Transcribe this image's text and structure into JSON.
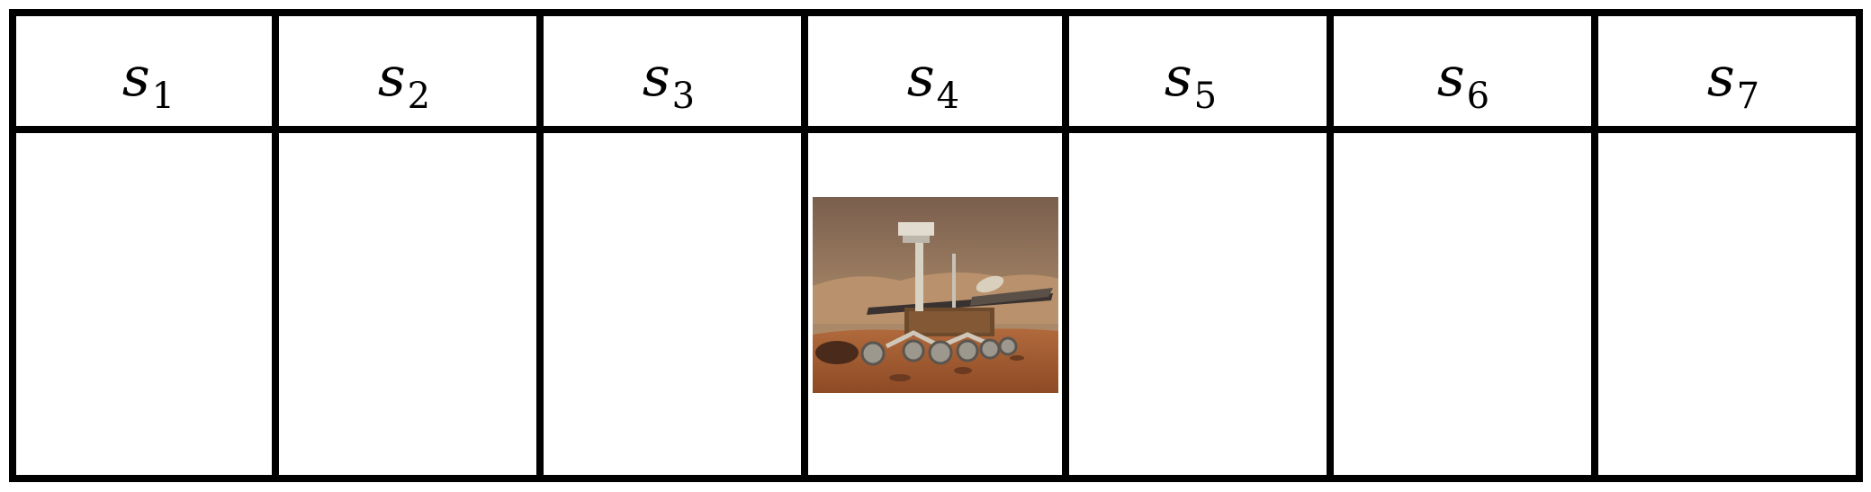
{
  "states": [
    {
      "symbol": "s",
      "index": "1"
    },
    {
      "symbol": "s",
      "index": "2"
    },
    {
      "symbol": "s",
      "index": "3"
    },
    {
      "symbol": "s",
      "index": "4"
    },
    {
      "symbol": "s",
      "index": "5"
    },
    {
      "symbol": "s",
      "index": "6"
    },
    {
      "symbol": "s",
      "index": "7"
    }
  ],
  "agent": {
    "state_index": 4,
    "icon": "mars-rover-icon"
  },
  "colors": {
    "grid": "#000000",
    "sky": "#7d6451",
    "ground": "#a4582f"
  }
}
